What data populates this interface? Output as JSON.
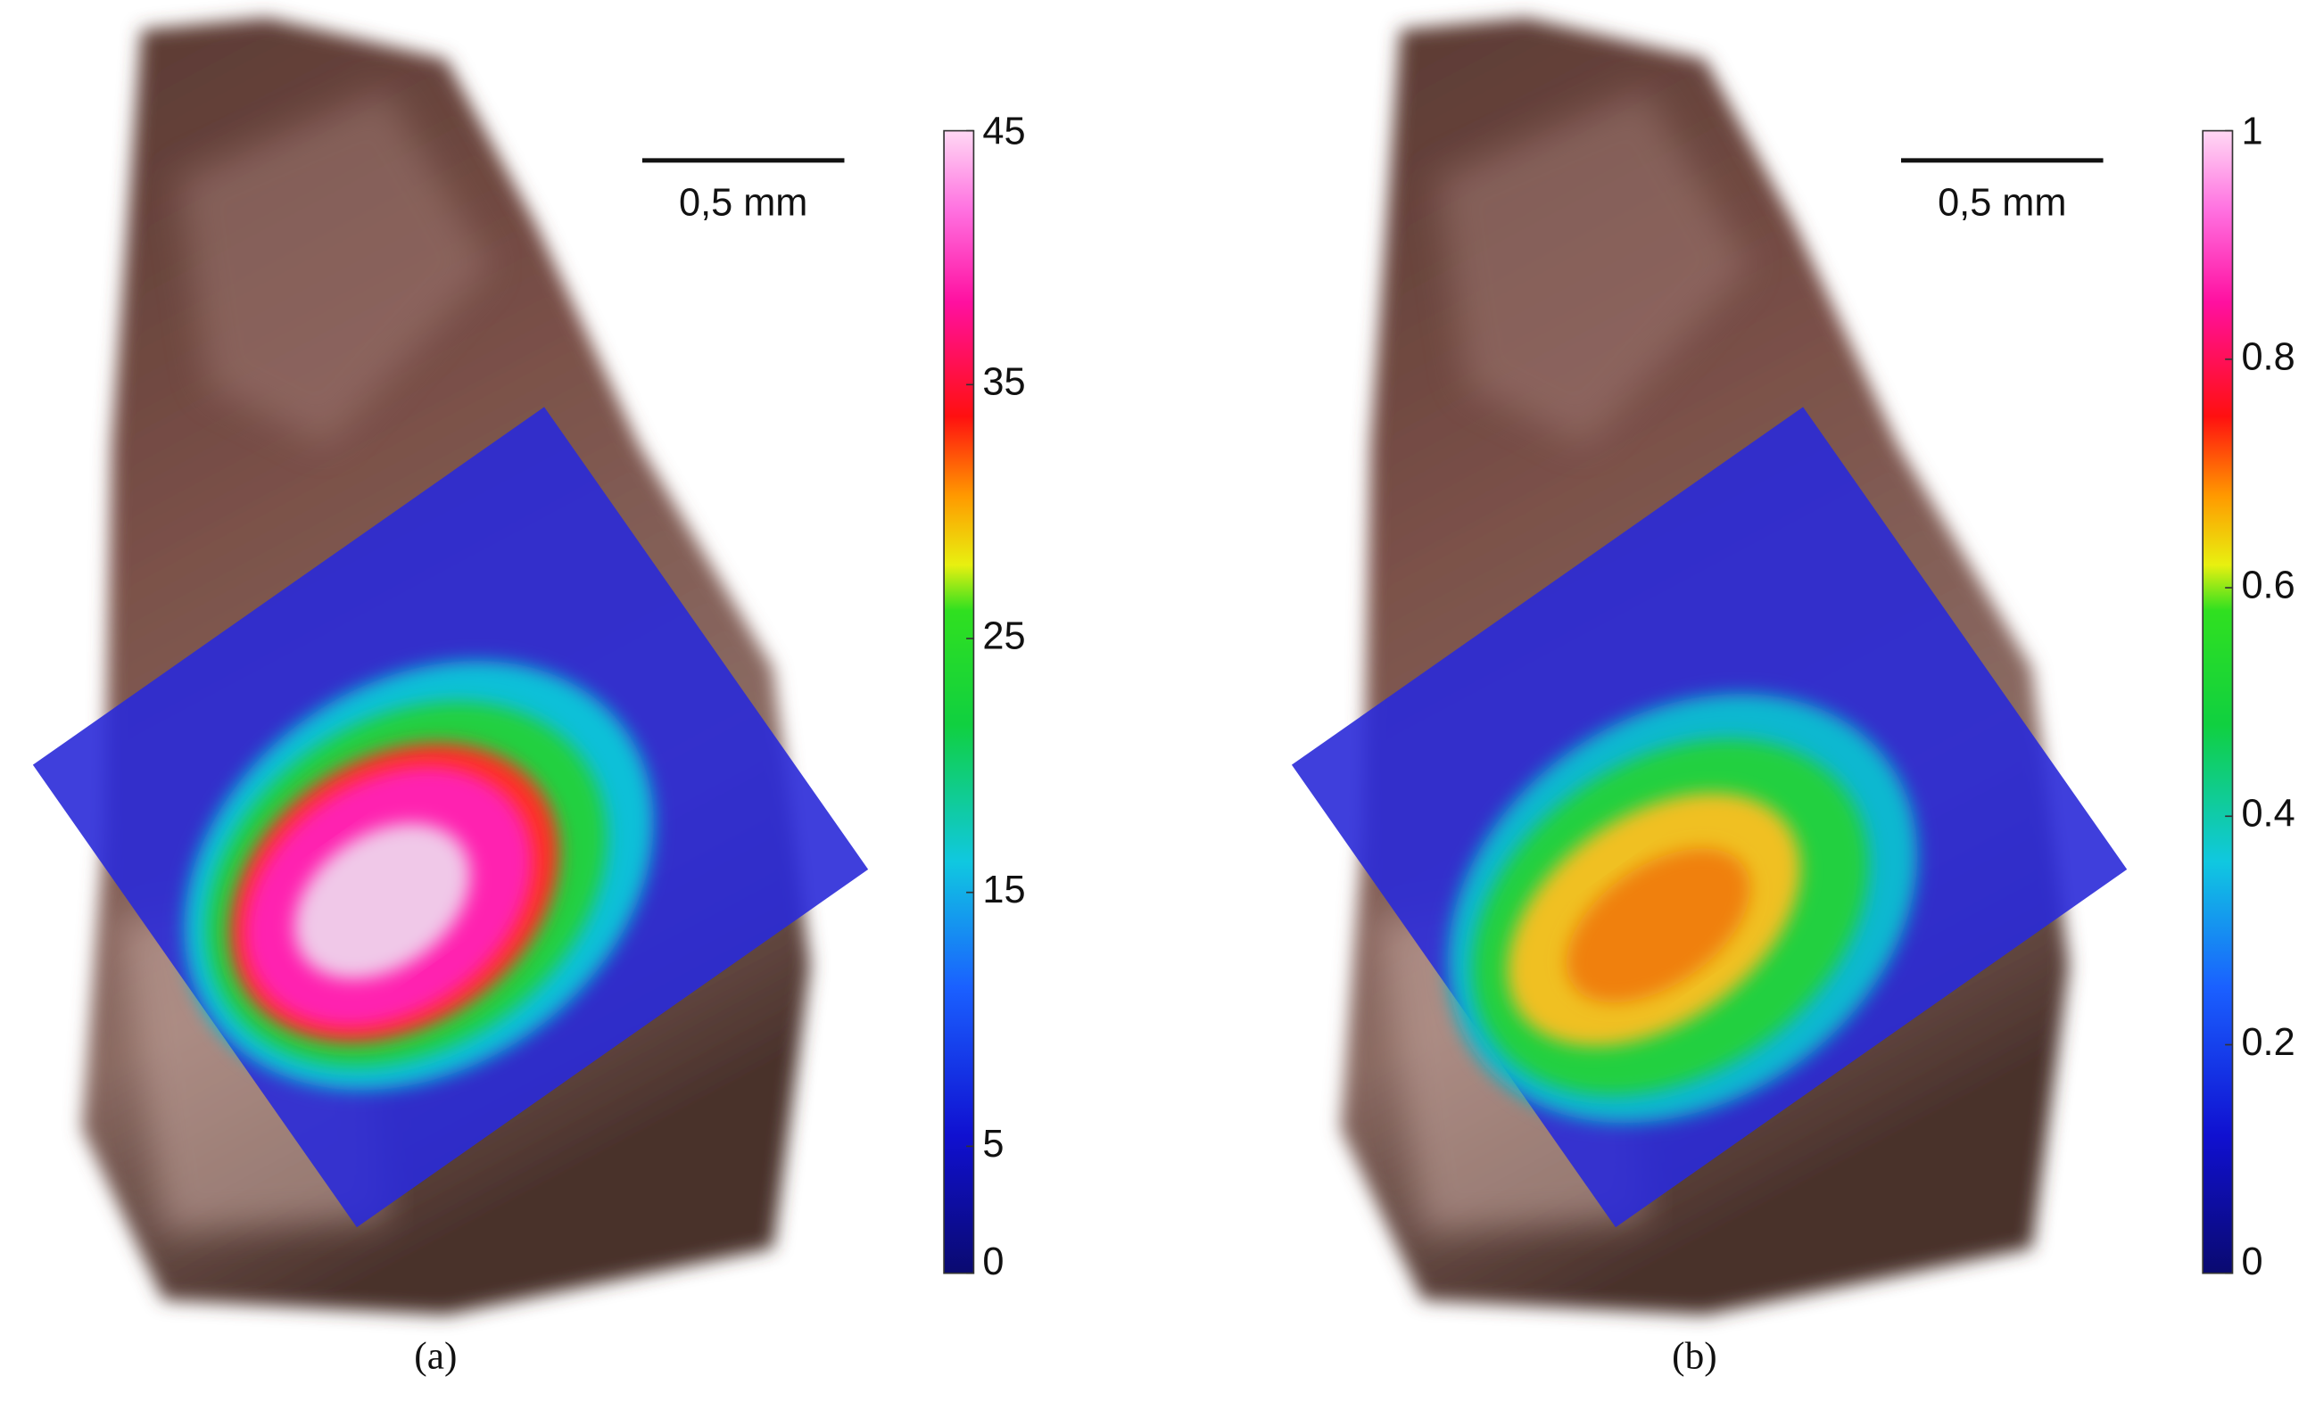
{
  "panels": [
    {
      "scale_bar": "0,5 mm",
      "colorbar": {
        "lim": [
          0,
          45
        ],
        "ticks": [
          0,
          5,
          15,
          25,
          35,
          45
        ]
      },
      "caption": "(a)"
    },
    {
      "scale_bar": "0,5 mm",
      "colorbar": {
        "lim": [
          0,
          1
        ],
        "ticks": [
          0,
          0.2,
          0.4,
          0.6,
          0.8,
          1
        ]
      },
      "caption": "(b)"
    }
  ]
}
